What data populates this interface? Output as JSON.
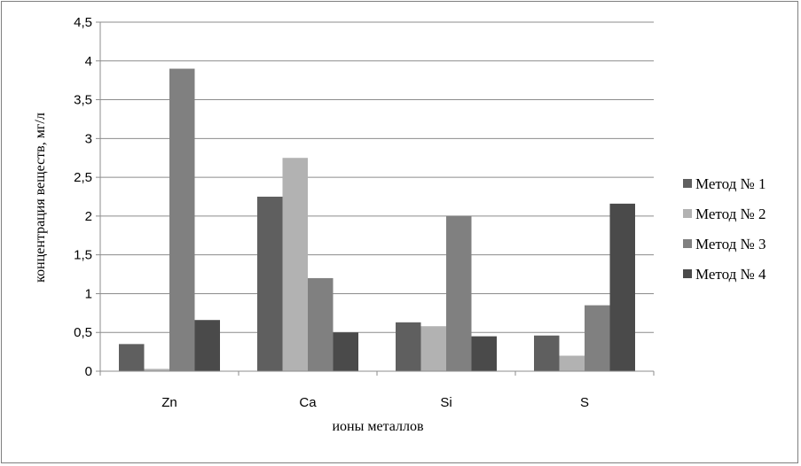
{
  "chart_data": {
    "type": "bar",
    "categories": [
      "Zn",
      "Ca",
      "Si",
      "S"
    ],
    "series": [
      {
        "name": "Метод № 1",
        "values": [
          0.35,
          2.25,
          0.63,
          0.46
        ],
        "color": "#5f5f5f"
      },
      {
        "name": "Метод № 2",
        "values": [
          0.03,
          2.75,
          0.58,
          0.2
        ],
        "color": "#b2b2b2"
      },
      {
        "name": "Метод № 3",
        "values": [
          3.9,
          1.2,
          2.0,
          0.85
        ],
        "color": "#808080"
      },
      {
        "name": "Метод № 4",
        "values": [
          0.66,
          0.5,
          0.45,
          2.16
        ],
        "color": "#4a4a4a"
      }
    ],
    "xlabel": "ионы металлов",
    "ylabel": "концентрация веществ, мг/л",
    "ylim": [
      0,
      4.5
    ],
    "yticks": [
      "0",
      "0,5",
      "1",
      "1,5",
      "2",
      "2,5",
      "3",
      "3,5",
      "4",
      "4,5"
    ],
    "grid": true,
    "legend_position": "right"
  }
}
